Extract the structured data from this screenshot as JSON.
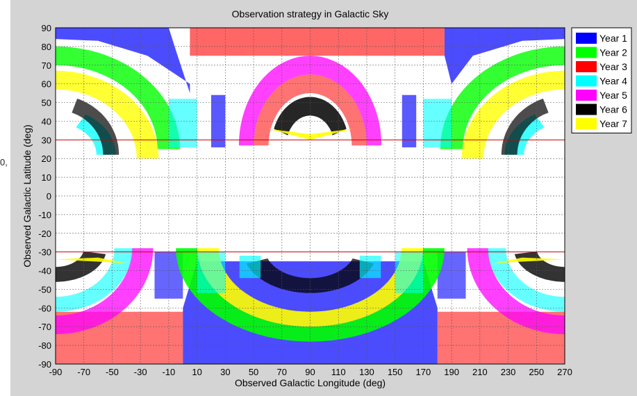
{
  "stray_text": "0,",
  "chart_data": {
    "type": "scatter",
    "title": "Observation strategy in Galactic Sky",
    "xlabel": "Observed Galactic Longitude (deg)",
    "ylabel": "Observed Galactic Latitude (deg)",
    "xlim": [
      -90,
      270
    ],
    "ylim": [
      -90,
      90
    ],
    "xticks": [
      -90,
      -70,
      -50,
      -30,
      -10,
      10,
      30,
      50,
      70,
      90,
      110,
      130,
      150,
      170,
      190,
      210,
      230,
      250,
      270
    ],
    "yticks": [
      90,
      80,
      70,
      60,
      50,
      40,
      30,
      20,
      10,
      0,
      -10,
      -20,
      -30,
      -40,
      -50,
      -60,
      -70,
      -80,
      -90
    ],
    "grid": true,
    "legend_position": "top-right",
    "reference_lines": [
      30,
      -30
    ],
    "series": [
      {
        "name": "Year 1",
        "color": "#0000ff"
      },
      {
        "name": "Year 2",
        "color": "#00ff00"
      },
      {
        "name": "Year 3",
        "color": "#ff0000"
      },
      {
        "name": "Year 4",
        "color": "#00ffff"
      },
      {
        "name": "Year 5",
        "color": "#ff00ff"
      },
      {
        "name": "Year 6",
        "color": "#000000"
      },
      {
        "name": "Year 7",
        "color": "#ffff00"
      }
    ]
  }
}
